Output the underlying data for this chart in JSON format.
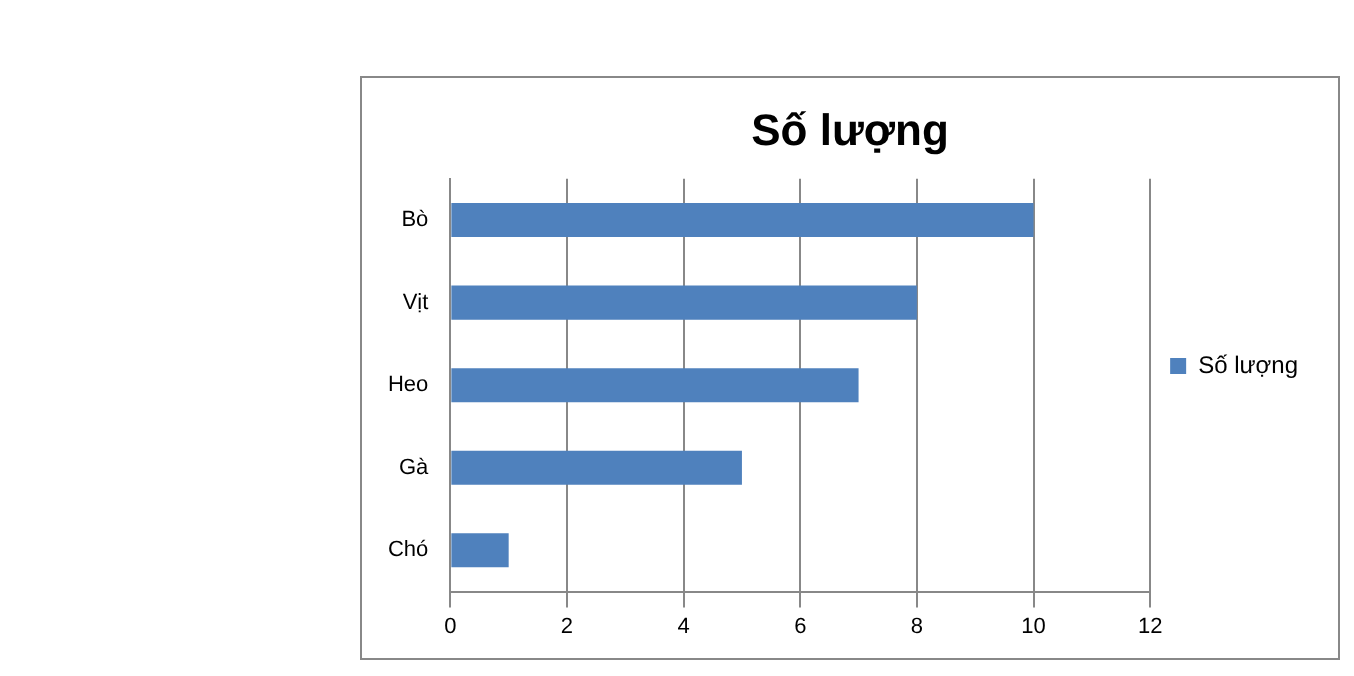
{
  "chart_data": {
    "type": "bar",
    "orientation": "horizontal",
    "title": "Số lượng",
    "categories": [
      "Bò",
      "Vịt",
      "Heo",
      "Gà",
      "Chó"
    ],
    "series": [
      {
        "name": "Số lượng",
        "color": "#4f81bd",
        "values": [
          10,
          8,
          7,
          5,
          1
        ]
      }
    ],
    "xlim": [
      0,
      12
    ],
    "xticks": [
      0,
      2,
      4,
      6,
      8,
      10,
      12
    ],
    "grid": "x",
    "legend": "right"
  }
}
